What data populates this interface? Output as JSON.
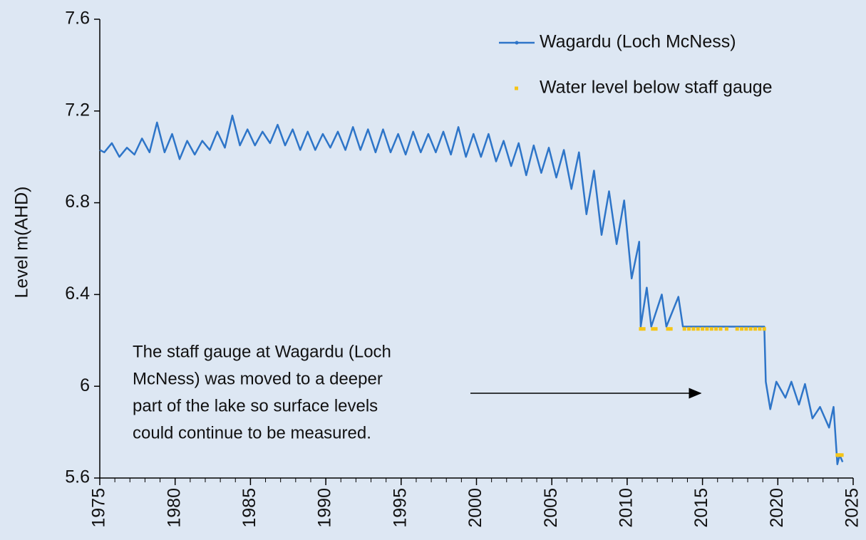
{
  "chart_data": {
    "type": "line",
    "ylabel": "Level m(AHD)",
    "xlim": [
      1975,
      2025
    ],
    "xticks": [
      1975,
      1980,
      1985,
      1990,
      1995,
      2000,
      2005,
      2010,
      2015,
      2020,
      2025
    ],
    "ylim": [
      5.6,
      7.6
    ],
    "yticks": [
      5.6,
      6,
      6.4,
      6.8,
      7.2,
      7.6
    ],
    "legend": "upper right",
    "annotation": [
      "The staff gauge at Wagardu (Loch",
      "McNess) was moved to a deeper",
      "part of the lake so surface levels",
      "could continue to be measured."
    ],
    "series": [
      {
        "name": "Wagardu (Loch McNess)",
        "color": "#2e75c8",
        "type": "line",
        "x": [
          1975.0,
          1975.3,
          1975.8,
          1976.3,
          1976.8,
          1977.3,
          1977.8,
          1978.3,
          1978.8,
          1979.3,
          1979.8,
          1980.3,
          1980.8,
          1981.3,
          1981.8,
          1982.3,
          1982.8,
          1983.3,
          1983.8,
          1984.3,
          1984.8,
          1985.3,
          1985.8,
          1986.3,
          1986.8,
          1987.3,
          1987.8,
          1988.3,
          1988.8,
          1989.3,
          1989.8,
          1990.3,
          1990.8,
          1991.3,
          1991.8,
          1992.3,
          1992.8,
          1993.3,
          1993.8,
          1994.3,
          1994.8,
          1995.3,
          1995.8,
          1996.3,
          1996.8,
          1997.3,
          1997.8,
          1998.3,
          1998.8,
          1999.3,
          1999.8,
          2000.3,
          2000.8,
          2001.3,
          2001.8,
          2002.3,
          2002.8,
          2003.3,
          2003.8,
          2004.3,
          2004.8,
          2005.3,
          2005.8,
          2006.3,
          2006.8,
          2007.3,
          2007.8,
          2008.3,
          2008.8,
          2009.3,
          2009.8,
          2010.3,
          2010.8,
          2010.9,
          2011.3,
          2011.6,
          2012.3,
          2012.6,
          2013.4,
          2013.7,
          2019.1,
          2019.2,
          2019.5,
          2019.9,
          2020.5,
          2020.9,
          2021.4,
          2021.8,
          2022.3,
          2022.8,
          2023.4,
          2023.7,
          2023.95,
          2024.1,
          2024.3
        ],
        "values": [
          7.03,
          7.02,
          7.06,
          7.0,
          7.04,
          7.01,
          7.08,
          7.02,
          7.15,
          7.02,
          7.1,
          6.99,
          7.07,
          7.01,
          7.07,
          7.03,
          7.11,
          7.04,
          7.18,
          7.05,
          7.12,
          7.05,
          7.11,
          7.06,
          7.14,
          7.05,
          7.12,
          7.03,
          7.11,
          7.03,
          7.1,
          7.04,
          7.11,
          7.03,
          7.13,
          7.03,
          7.12,
          7.02,
          7.12,
          7.02,
          7.1,
          7.01,
          7.11,
          7.02,
          7.1,
          7.02,
          7.11,
          7.01,
          7.13,
          7.0,
          7.1,
          7.0,
          7.1,
          6.98,
          7.07,
          6.96,
          7.06,
          6.92,
          7.05,
          6.93,
          7.04,
          6.91,
          7.03,
          6.86,
          7.02,
          6.75,
          6.94,
          6.66,
          6.85,
          6.62,
          6.81,
          6.47,
          6.63,
          6.26,
          6.43,
          6.26,
          6.4,
          6.26,
          6.39,
          6.26,
          6.26,
          6.02,
          5.9,
          6.02,
          5.95,
          6.02,
          5.92,
          6.01,
          5.86,
          5.91,
          5.82,
          5.91,
          5.66,
          5.7,
          5.67
        ]
      },
      {
        "name": "Water level below staff gauge",
        "color": "#f5c518",
        "type": "scatter",
        "x": [
          2010.9,
          2011.1,
          2011.7,
          2011.9,
          2012.7,
          2012.9,
          2013.8,
          2014.1,
          2014.4,
          2014.7,
          2015.0,
          2015.3,
          2015.6,
          2015.9,
          2016.2,
          2016.6,
          2017.3,
          2017.6,
          2017.9,
          2018.2,
          2018.5,
          2018.8,
          2019.1,
          2023.95,
          2024.05,
          2024.15,
          2024.25
        ],
        "values": [
          6.25,
          6.25,
          6.25,
          6.25,
          6.25,
          6.25,
          6.25,
          6.25,
          6.25,
          6.25,
          6.25,
          6.25,
          6.25,
          6.25,
          6.25,
          6.25,
          6.25,
          6.25,
          6.25,
          6.25,
          6.25,
          6.25,
          6.25,
          5.7,
          5.7,
          5.7,
          5.7
        ]
      }
    ]
  }
}
